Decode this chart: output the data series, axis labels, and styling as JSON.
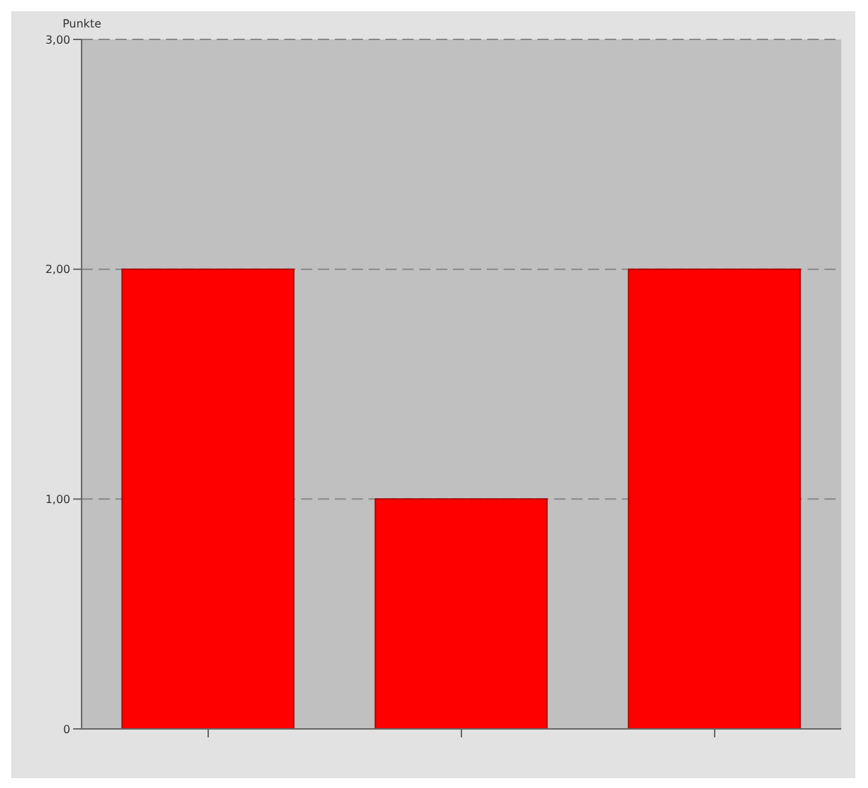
{
  "chart_data": {
    "type": "bar",
    "ylabel": "Punkte",
    "categories": [
      null,
      null,
      null
    ],
    "values": [
      2,
      1,
      2
    ],
    "color": "#ff0000",
    "ylim": [
      0,
      3
    ],
    "yticks": [
      0,
      {
        "value": 1,
        "label": "1,00"
      },
      {
        "value": 2,
        "label": "2,00"
      },
      {
        "value": 3,
        "label": "3,00"
      }
    ],
    "grid": "y"
  }
}
